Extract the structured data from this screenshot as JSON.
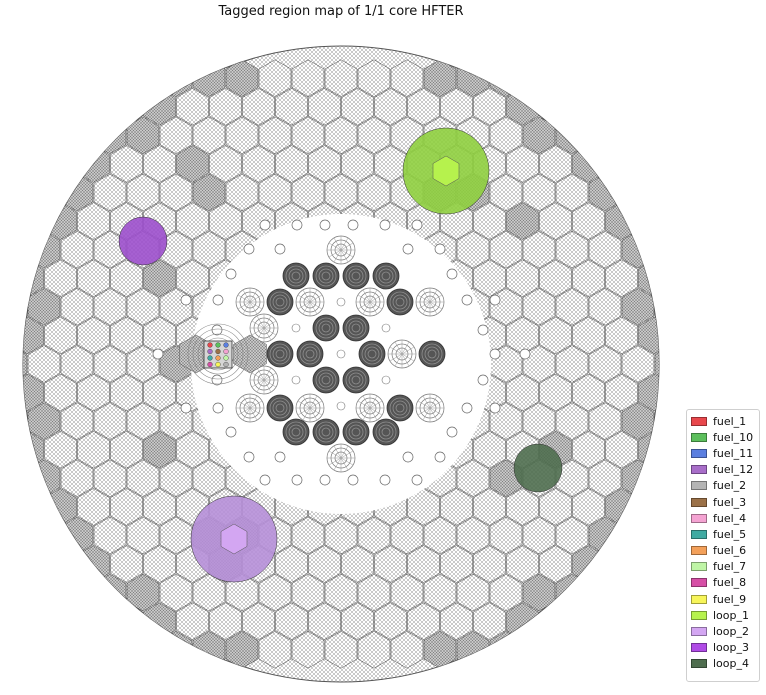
{
  "title": "Tagged region map of 1/1 core HFTER",
  "legend": [
    {
      "label": "fuel_1",
      "color": "#e8474c"
    },
    {
      "label": "fuel_10",
      "color": "#5cbf5c"
    },
    {
      "label": "fuel_11",
      "color": "#5b7fe0"
    },
    {
      "label": "fuel_12",
      "color": "#a86ec9"
    },
    {
      "label": "fuel_2",
      "color": "#b4b4b4"
    },
    {
      "label": "fuel_3",
      "color": "#9b7148"
    },
    {
      "label": "fuel_4",
      "color": "#f4a3d2"
    },
    {
      "label": "fuel_5",
      "color": "#3faaa2"
    },
    {
      "label": "fuel_6",
      "color": "#f3a05a"
    },
    {
      "label": "fuel_7",
      "color": "#bff5a6"
    },
    {
      "label": "fuel_8",
      "color": "#d64fa6"
    },
    {
      "label": "fuel_9",
      "color": "#f7f55a"
    },
    {
      "label": "loop_1",
      "color": "#b6f24d"
    },
    {
      "label": "loop_2",
      "color": "#d3a6f2"
    },
    {
      "label": "loop_3",
      "color": "#b04be6"
    },
    {
      "label": "loop_4",
      "color": "#4f6e4f"
    }
  ],
  "loops": [
    {
      "tag": "loop_1",
      "outer_color": "#8fcf3f",
      "inner_color": "#b6f24d"
    },
    {
      "tag": "loop_2",
      "outer_color": "#b68fd8",
      "inner_color": "#d3a6f2"
    },
    {
      "tag": "loop_3",
      "outer_color": "#9c4fcc"
    },
    {
      "tag": "loop_4",
      "outer_color": "#4f6e4f"
    }
  ],
  "core_colors": {
    "hatch": "#6b6b6b",
    "shaded_hex": "#c8c8c8",
    "fuel_rings": "#555555"
  }
}
